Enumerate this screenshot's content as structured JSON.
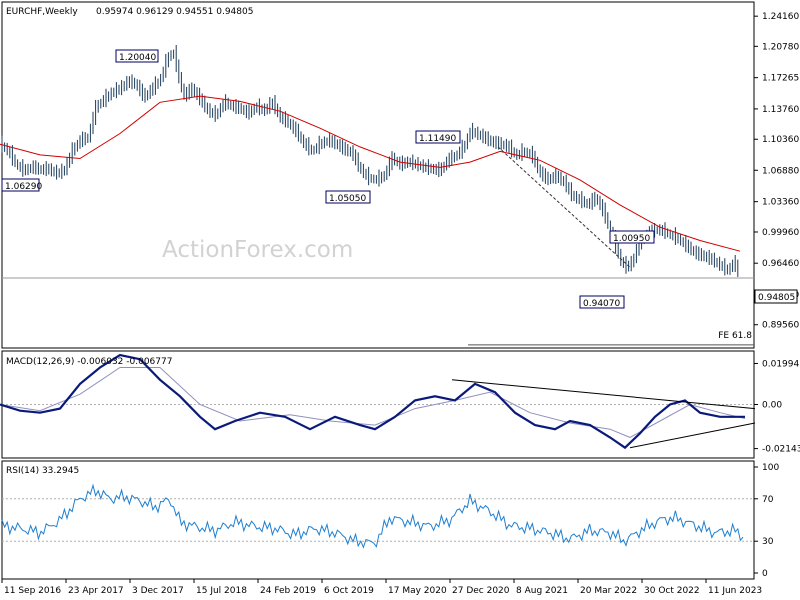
{
  "chart_data": [
    {
      "type": "candlestick",
      "title": "EURCHF,Weekly",
      "ohlc_text": "0.95974 0.96129 0.94551 0.94805",
      "last_price_label": "0.94805",
      "watermark": "ActionForex.com",
      "ylim": [
        0.8695,
        1.2575
      ],
      "y_ticks": [
        "1.24160",
        "1.20780",
        "1.17265",
        "1.13760",
        "1.10360",
        "1.06880",
        "1.03360",
        "0.99960",
        "0.96460",
        "0.92960",
        "0.89560"
      ],
      "x_ticks": [
        "11 Sep 2016",
        "23 Apr 2017",
        "3 Dec 2017",
        "15 Jul 2018",
        "24 Feb 2019",
        "6 Oct 2019",
        "17 May 2020",
        "27 Dec 2020",
        "8 Aug 2021",
        "20 Mar 2022",
        "30 Oct 2022",
        "11 Jun 2023"
      ],
      "annotations": [
        "1.20040",
        "1.06290",
        "1.05050",
        "1.11490",
        "1.00950",
        "0.94070",
        "FE 61.8"
      ],
      "price_path": [
        [
          0,
          1.098
        ],
        [
          8,
          1.09
        ],
        [
          16,
          1.075
        ],
        [
          24,
          1.068
        ],
        [
          32,
          1.072
        ],
        [
          40,
          1.069
        ],
        [
          48,
          1.07
        ],
        [
          56,
          1.065
        ],
        [
          64,
          1.068
        ],
        [
          72,
          1.09
        ],
        [
          80,
          1.102
        ],
        [
          88,
          1.105
        ],
        [
          96,
          1.14
        ],
        [
          104,
          1.148
        ],
        [
          112,
          1.156
        ],
        [
          120,
          1.16
        ],
        [
          128,
          1.168
        ],
        [
          136,
          1.165
        ],
        [
          144,
          1.15
        ],
        [
          152,
          1.16
        ],
        [
          160,
          1.17
        ],
        [
          168,
          1.196
        ],
        [
          174,
          1.2
        ],
        [
          178,
          1.175
        ],
        [
          184,
          1.152
        ],
        [
          192,
          1.16
        ],
        [
          200,
          1.148
        ],
        [
          208,
          1.135
        ],
        [
          216,
          1.13
        ],
        [
          224,
          1.145
        ],
        [
          232,
          1.14
        ],
        [
          240,
          1.138
        ],
        [
          248,
          1.132
        ],
        [
          256,
          1.14
        ],
        [
          264,
          1.135
        ],
        [
          272,
          1.145
        ],
        [
          280,
          1.128
        ],
        [
          288,
          1.122
        ],
        [
          296,
          1.112
        ],
        [
          304,
          1.098
        ],
        [
          312,
          1.09
        ],
        [
          320,
          1.098
        ],
        [
          328,
          1.102
        ],
        [
          336,
          1.098
        ],
        [
          344,
          1.092
        ],
        [
          352,
          1.088
        ],
        [
          360,
          1.07
        ],
        [
          368,
          1.06
        ],
        [
          376,
          1.058
        ],
        [
          384,
          1.062
        ],
        [
          392,
          1.082
        ],
        [
          400,
          1.075
        ],
        [
          408,
          1.078
        ],
        [
          416,
          1.075
        ],
        [
          424,
          1.072
        ],
        [
          432,
          1.07
        ],
        [
          440,
          1.068
        ],
        [
          448,
          1.08
        ],
        [
          456,
          1.085
        ],
        [
          464,
          1.095
        ],
        [
          470,
          1.112
        ],
        [
          476,
          1.11
        ],
        [
          484,
          1.105
        ],
        [
          492,
          1.1
        ],
        [
          500,
          1.098
        ],
        [
          508,
          1.095
        ],
        [
          516,
          1.085
        ],
        [
          524,
          1.09
        ],
        [
          532,
          1.085
        ],
        [
          540,
          1.065
        ],
        [
          548,
          1.058
        ],
        [
          556,
          1.062
        ],
        [
          564,
          1.055
        ],
        [
          572,
          1.04
        ],
        [
          580,
          1.035
        ],
        [
          588,
          1.03
        ],
        [
          596,
          1.038
        ],
        [
          604,
          1.02
        ],
        [
          612,
          0.995
        ],
        [
          620,
          0.968
        ],
        [
          626,
          0.96
        ],
        [
          632,
          0.965
        ],
        [
          640,
          0.99
        ],
        [
          648,
          0.998
        ],
        [
          656,
          1.002
        ],
        [
          664,
          1.0
        ],
        [
          672,
          0.995
        ],
        [
          680,
          0.99
        ],
        [
          688,
          0.982
        ],
        [
          696,
          0.975
        ],
        [
          704,
          0.972
        ],
        [
          712,
          0.968
        ],
        [
          720,
          0.962
        ],
        [
          728,
          0.956
        ],
        [
          734,
          0.966
        ],
        [
          740,
          0.948
        ]
      ],
      "ma_path": [
        [
          0,
          1.098
        ],
        [
          40,
          1.086
        ],
        [
          80,
          1.082
        ],
        [
          120,
          1.11
        ],
        [
          160,
          1.145
        ],
        [
          200,
          1.152
        ],
        [
          240,
          1.146
        ],
        [
          280,
          1.135
        ],
        [
          320,
          1.116
        ],
        [
          360,
          1.095
        ],
        [
          400,
          1.078
        ],
        [
          440,
          1.072
        ],
        [
          470,
          1.078
        ],
        [
          500,
          1.09
        ],
        [
          540,
          1.08
        ],
        [
          580,
          1.058
        ],
        [
          620,
          1.03
        ],
        [
          660,
          1.005
        ],
        [
          700,
          0.99
        ],
        [
          740,
          0.978
        ]
      ],
      "trendlines": [
        [
          [
            498,
            1.095
          ],
          [
            630,
            0.96
          ]
        ]
      ],
      "fe_level": 0.873
    },
    {
      "type": "line",
      "title": "MACD(12,26,9) -0.006032 -0.006777",
      "ylim": [
        -0.026,
        0.026
      ],
      "y_ticks": [
        "0.019943",
        "0.00",
        "-0.021434"
      ],
      "macd_path": [
        [
          0,
          0.0
        ],
        [
          20,
          -0.003
        ],
        [
          40,
          -0.004
        ],
        [
          60,
          -0.002
        ],
        [
          80,
          0.01
        ],
        [
          100,
          0.018
        ],
        [
          120,
          0.024
        ],
        [
          140,
          0.022
        ],
        [
          160,
          0.012
        ],
        [
          180,
          0.004
        ],
        [
          200,
          -0.006
        ],
        [
          215,
          -0.012
        ],
        [
          235,
          -0.008
        ],
        [
          260,
          -0.004
        ],
        [
          285,
          -0.006
        ],
        [
          310,
          -0.012
        ],
        [
          335,
          -0.006
        ],
        [
          360,
          -0.01
        ],
        [
          375,
          -0.012
        ],
        [
          395,
          -0.006
        ],
        [
          415,
          0.002
        ],
        [
          435,
          0.004
        ],
        [
          455,
          0.002
        ],
        [
          475,
          0.01
        ],
        [
          495,
          0.006
        ],
        [
          515,
          -0.004
        ],
        [
          535,
          -0.01
        ],
        [
          555,
          -0.012
        ],
        [
          570,
          -0.008
        ],
        [
          590,
          -0.01
        ],
        [
          610,
          -0.016
        ],
        [
          625,
          -0.021
        ],
        [
          640,
          -0.014
        ],
        [
          655,
          -0.006
        ],
        [
          670,
          0.0
        ],
        [
          685,
          0.002
        ],
        [
          700,
          -0.004
        ],
        [
          720,
          -0.006
        ],
        [
          735,
          -0.006
        ],
        [
          745,
          -0.006
        ]
      ],
      "signal_path": [
        [
          0,
          0.0
        ],
        [
          40,
          -0.003
        ],
        [
          80,
          0.005
        ],
        [
          120,
          0.018
        ],
        [
          160,
          0.018
        ],
        [
          200,
          0.0
        ],
        [
          240,
          -0.008
        ],
        [
          290,
          -0.005
        ],
        [
          330,
          -0.008
        ],
        [
          375,
          -0.01
        ],
        [
          415,
          -0.002
        ],
        [
          455,
          0.002
        ],
        [
          490,
          0.006
        ],
        [
          530,
          -0.004
        ],
        [
          570,
          -0.009
        ],
        [
          610,
          -0.012
        ],
        [
          630,
          -0.016
        ],
        [
          660,
          -0.008
        ],
        [
          690,
          0.0
        ],
        [
          720,
          -0.004
        ],
        [
          745,
          -0.0068
        ]
      ],
      "trendlines": [
        [
          [
            452,
            0.012
          ],
          [
            755,
            -0.002
          ]
        ],
        [
          [
            630,
            -0.021
          ],
          [
            755,
            -0.009
          ]
        ]
      ]
    },
    {
      "type": "line",
      "title": "RSI(14) 33.2945",
      "ylim": [
        0,
        100
      ],
      "y_ticks": [
        "100",
        "70",
        "30",
        "0"
      ],
      "rsi_path": [
        [
          0,
          45
        ],
        [
          20,
          42
        ],
        [
          40,
          38
        ],
        [
          60,
          50
        ],
        [
          80,
          70
        ],
        [
          96,
          78
        ],
        [
          110,
          70
        ],
        [
          125,
          72
        ],
        [
          140,
          68
        ],
        [
          155,
          62
        ],
        [
          170,
          70
        ],
        [
          180,
          48
        ],
        [
          195,
          44
        ],
        [
          215,
          40
        ],
        [
          235,
          48
        ],
        [
          255,
          44
        ],
        [
          275,
          42
        ],
        [
          295,
          36
        ],
        [
          315,
          42
        ],
        [
          335,
          38
        ],
        [
          355,
          30
        ],
        [
          375,
          28
        ],
        [
          390,
          52
        ],
        [
          410,
          48
        ],
        [
          430,
          44
        ],
        [
          450,
          50
        ],
        [
          470,
          68
        ],
        [
          490,
          58
        ],
        [
          510,
          45
        ],
        [
          530,
          42
        ],
        [
          550,
          38
        ],
        [
          570,
          32
        ],
        [
          590,
          40
        ],
        [
          610,
          38
        ],
        [
          625,
          30
        ],
        [
          640,
          40
        ],
        [
          660,
          50
        ],
        [
          675,
          52
        ],
        [
          695,
          45
        ],
        [
          715,
          38
        ],
        [
          735,
          40
        ],
        [
          745,
          33
        ]
      ]
    }
  ]
}
